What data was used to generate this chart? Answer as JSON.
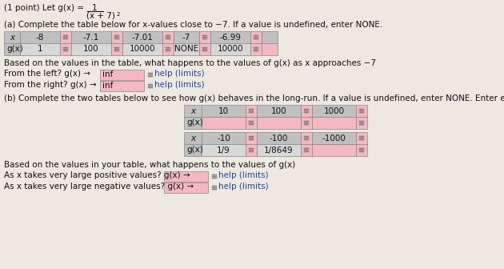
{
  "bg_color": "#ede8e0",
  "table_header_bg": "#c0c0c0",
  "table_cell_bg": "#d8d8d8",
  "input_cell_bg": "#f5b8c0",
  "text_color": "#111111",
  "blue_color": "#2244aa",
  "font_size": 7.5,
  "small_font": 5.5,
  "part_a_text": "(a) Complete the table below for x-values close to −7. If a value is undefined, enter NONE.",
  "based_text": "Based on the values in the table, what happens to the values of g(x) as x approaches −7",
  "left_text": "From the left? g(x) →",
  "left_val": "inf",
  "right_text": "From the right? g(x) →",
  "right_val": "inf",
  "help_limits": "help (limits)",
  "part_b_text": "(b) Complete the two tables below to see how g(x) behaves in the long-run. If a value is undefined, enter NONE. Enter exact answers using fract",
  "table_b1_headers": [
    "x",
    "10",
    "100",
    "1000"
  ],
  "table_b1_row": [
    "g(x)",
    "",
    "",
    ""
  ],
  "table_b2_headers": [
    "x",
    "-10",
    "-100",
    "-1000"
  ],
  "table_b2_row": [
    "g(x)",
    "1/9",
    "1/8649",
    ""
  ],
  "based_b_text": "Based on the values in your table, what happens to the values of g(x)",
  "pos_text": "As x takes very large positive values? g(x) →",
  "neg_text": "As x takes very large negative values? g(x) →"
}
